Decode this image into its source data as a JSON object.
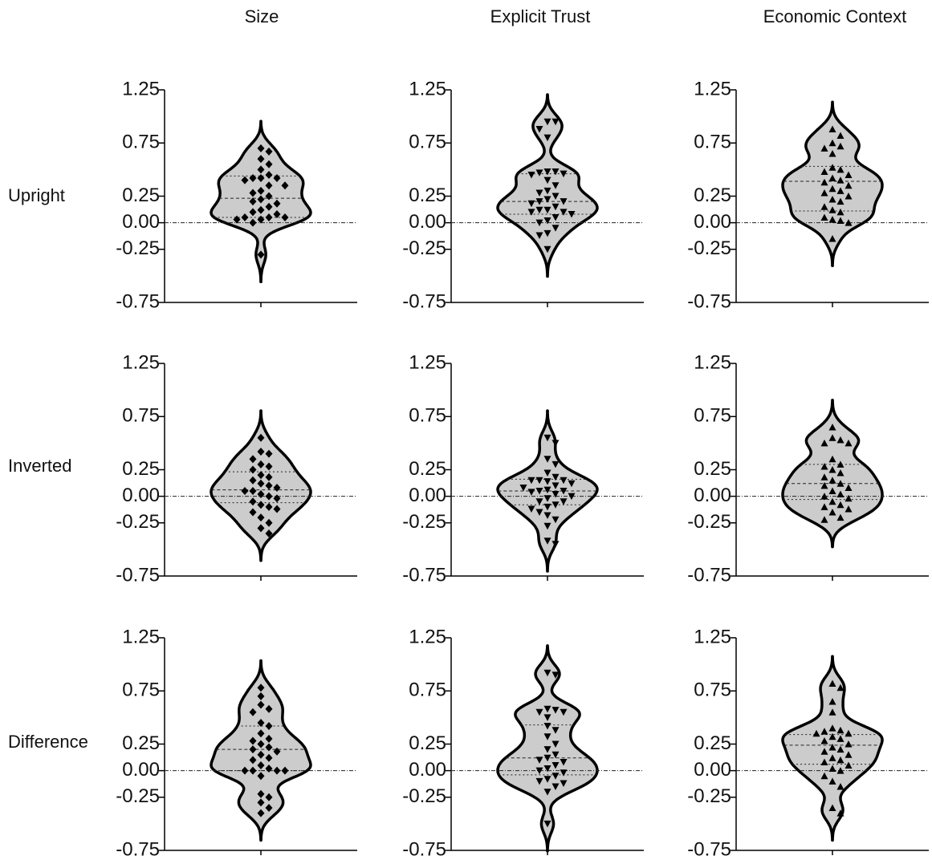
{
  "column_titles": [
    "Size",
    "Explicit Trust",
    "Economic Context"
  ],
  "row_labels": [
    "Upright",
    "Inverted",
    "Difference"
  ],
  "chart_data": [
    {
      "type": "violin",
      "marker": "diamond",
      "color": "#cccccc",
      "ylim": [
        -0.75,
        1.25
      ],
      "yticks": [
        1.25,
        0.75,
        0.25,
        {
          "value": 0,
          "label": "0.00"
        },
        -0.25,
        -0.75
      ],
      "reference_line": 0,
      "q1": 0.05,
      "median": 0.23,
      "q3": 0.44,
      "values": [
        0.7,
        0.67,
        0.6,
        0.55,
        0.5,
        0.45,
        0.42,
        0.42,
        0.42,
        0.4,
        0.35,
        0.35,
        0.3,
        0.28,
        0.25,
        0.22,
        0.2,
        0.18,
        0.15,
        0.12,
        0.1,
        0.08,
        0.05,
        0.05,
        0.05,
        0.03,
        0.03,
        0.0,
        -0.3
      ]
    },
    {
      "type": "violin",
      "marker": "triangle-down",
      "color": "#cccccc",
      "ylim": [
        -0.75,
        1.25
      ],
      "yticks": [
        1.25,
        0.75,
        0.25,
        {
          "value": 0,
          "label": "0.00"
        },
        -0.25,
        -0.75
      ],
      "reference_line": 0,
      "q1": 0.08,
      "median": 0.2,
      "q3": 0.46,
      "values": [
        0.95,
        0.95,
        0.88,
        0.8,
        0.48,
        0.48,
        0.47,
        0.46,
        0.45,
        0.4,
        0.35,
        0.3,
        0.28,
        0.25,
        0.22,
        0.2,
        0.2,
        0.18,
        0.15,
        0.12,
        0.12,
        0.1,
        0.1,
        0.08,
        0.05,
        0.02,
        0.0,
        -0.05,
        -0.1,
        -0.12,
        -0.25
      ]
    },
    {
      "type": "violin",
      "marker": "triangle-up",
      "color": "#cccccc",
      "ylim": [
        -0.75,
        1.25
      ],
      "yticks": [
        1.25,
        0.75,
        0.25,
        {
          "value": 0,
          "label": "0.00"
        },
        -0.25,
        -0.75
      ],
      "reference_line": 0,
      "q1": 0.11,
      "median": 0.39,
      "q3": 0.53,
      "values": [
        0.88,
        0.82,
        0.75,
        0.72,
        0.7,
        0.65,
        0.52,
        0.5,
        0.48,
        0.45,
        0.42,
        0.4,
        0.38,
        0.35,
        0.32,
        0.3,
        0.28,
        0.25,
        0.22,
        0.2,
        0.15,
        0.12,
        0.1,
        0.05,
        0.03,
        0.02,
        0.0,
        -0.15
      ]
    },
    {
      "type": "violin",
      "marker": "diamond",
      "color": "#cccccc",
      "ylim": [
        -0.75,
        1.25
      ],
      "yticks": [
        1.25,
        0.75,
        0.25,
        {
          "value": 0,
          "label": "0.00"
        },
        -0.25,
        -0.75
      ],
      "reference_line": 0,
      "q1": -0.06,
      "median": 0.06,
      "q3": 0.23,
      "values": [
        0.55,
        0.42,
        0.4,
        0.35,
        0.3,
        0.28,
        0.25,
        0.2,
        0.18,
        0.15,
        0.12,
        0.1,
        0.08,
        0.05,
        0.05,
        0.02,
        0.0,
        -0.02,
        -0.05,
        -0.08,
        -0.1,
        -0.12,
        -0.15,
        -0.2,
        -0.25,
        -0.3,
        -0.35
      ]
    },
    {
      "type": "violin",
      "marker": "triangle-down",
      "color": "#cccccc",
      "ylim": [
        -0.75,
        1.25
      ],
      "yticks": [
        1.25,
        0.75,
        0.25,
        {
          "value": 0,
          "label": "0.00"
        },
        -0.25,
        -0.75
      ],
      "reference_line": 0,
      "q1": -0.08,
      "median": 0.05,
      "q3": 0.16,
      "values": [
        0.55,
        0.5,
        0.35,
        0.3,
        0.22,
        0.18,
        0.15,
        0.15,
        0.15,
        0.14,
        0.12,
        0.1,
        0.08,
        0.06,
        0.05,
        0.05,
        0.04,
        0.02,
        0.0,
        -0.02,
        -0.05,
        -0.05,
        -0.08,
        -0.1,
        -0.12,
        -0.15,
        -0.18,
        -0.22,
        -0.28,
        -0.42,
        -0.45
      ]
    },
    {
      "type": "violin",
      "marker": "triangle-up",
      "color": "#cccccc",
      "ylim": [
        -0.75,
        1.25
      ],
      "yticks": [
        1.25,
        0.75,
        0.25,
        {
          "value": 0,
          "label": "0.00"
        },
        -0.25,
        -0.75
      ],
      "reference_line": 0,
      "q1": -0.03,
      "median": 0.12,
      "q3": 0.3,
      "values": [
        0.65,
        0.55,
        0.53,
        0.5,
        0.5,
        0.35,
        0.3,
        0.28,
        0.25,
        0.22,
        0.18,
        0.15,
        0.12,
        0.1,
        0.08,
        0.05,
        0.02,
        0.0,
        -0.02,
        -0.05,
        -0.08,
        -0.1,
        -0.12,
        -0.15,
        -0.2,
        -0.22
      ]
    },
    {
      "type": "violin",
      "marker": "diamond",
      "color": "#cccccc",
      "ylim": [
        -0.75,
        1.25
      ],
      "yticks": [
        1.25,
        0.75,
        0.25,
        {
          "value": 0,
          "label": "0.00"
        },
        -0.25,
        -0.75
      ],
      "reference_line": 0,
      "q1": 0.0,
      "median": 0.2,
      "q3": 0.42,
      "values": [
        0.78,
        0.7,
        0.62,
        0.58,
        0.55,
        0.45,
        0.42,
        0.35,
        0.3,
        0.28,
        0.25,
        0.22,
        0.2,
        0.18,
        0.15,
        0.12,
        0.1,
        0.05,
        0.02,
        0.0,
        0.0,
        0.0,
        0.0,
        -0.05,
        -0.22,
        -0.25,
        -0.3,
        -0.35,
        -0.4
      ]
    },
    {
      "type": "violin",
      "marker": "triangle-down",
      "color": "#cccccc",
      "ylim": [
        -0.75,
        1.25
      ],
      "yticks": [
        1.25,
        0.75,
        0.25,
        {
          "value": 0,
          "label": "0.00"
        },
        -0.25,
        -0.75
      ],
      "reference_line": 0,
      "q1": -0.04,
      "median": 0.12,
      "q3": 0.43,
      "values": [
        0.92,
        0.9,
        0.58,
        0.57,
        0.55,
        0.55,
        0.5,
        0.42,
        0.38,
        0.32,
        0.25,
        0.2,
        0.15,
        0.12,
        0.1,
        0.08,
        0.05,
        0.02,
        0.0,
        -0.02,
        -0.05,
        -0.08,
        -0.1,
        -0.12,
        -0.15,
        -0.2,
        -0.5
      ]
    },
    {
      "type": "violin",
      "marker": "triangle-up",
      "color": "#cccccc",
      "ylim": [
        -0.75,
        1.25
      ],
      "yticks": [
        1.25,
        0.75,
        0.25,
        {
          "value": 0,
          "label": "0.00"
        },
        -0.25,
        -0.75
      ],
      "reference_line": 0,
      "q1": 0.06,
      "median": 0.24,
      "q3": 0.34,
      "values": [
        0.82,
        0.78,
        0.65,
        0.55,
        0.4,
        0.38,
        0.37,
        0.35,
        0.35,
        0.32,
        0.3,
        0.28,
        0.25,
        0.22,
        0.2,
        0.18,
        0.15,
        0.12,
        0.1,
        0.08,
        0.05,
        0.02,
        0.0,
        -0.05,
        -0.1,
        -0.15,
        -0.35,
        -0.4
      ]
    }
  ]
}
